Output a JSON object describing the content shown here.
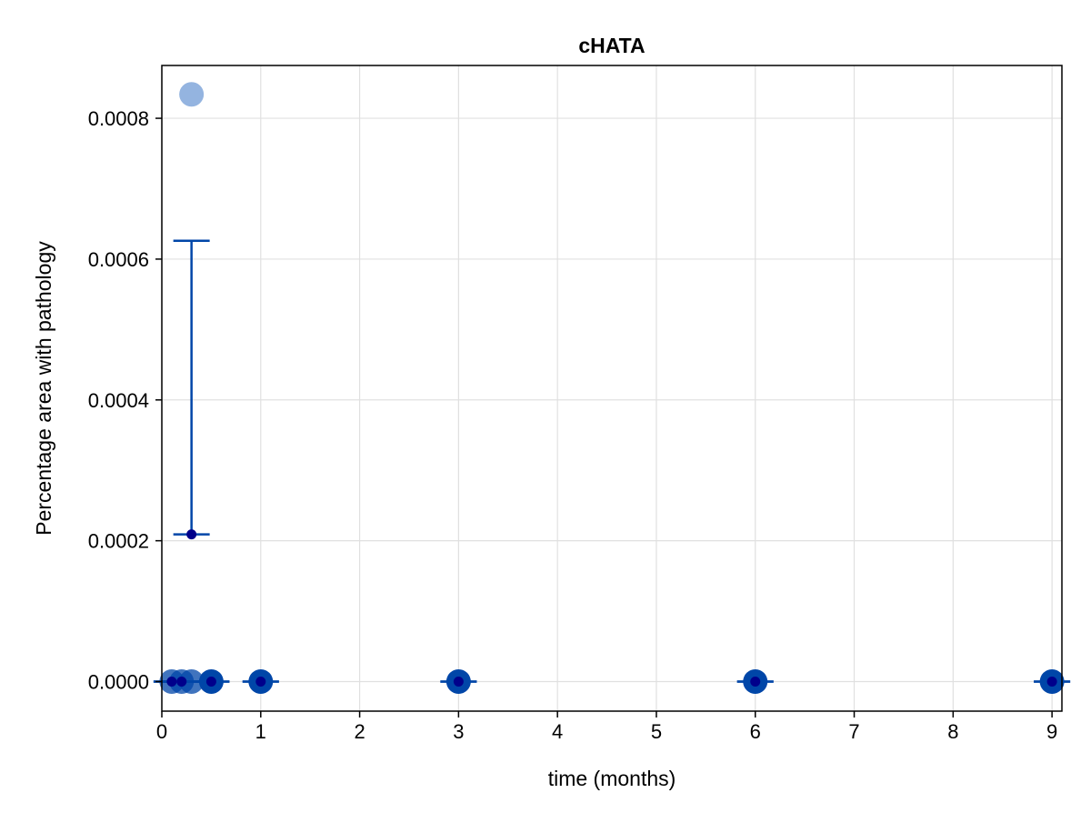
{
  "chart_data": {
    "type": "scatter",
    "title": "cHATA",
    "xlabel": "time (months)",
    "ylabel": "Percentage area with pathology",
    "xlim": [
      0,
      9.1
    ],
    "ylim": [
      -4.2e-05,
      0.000875
    ],
    "xticks": [
      0,
      1,
      2,
      3,
      4,
      5,
      6,
      7,
      8,
      9
    ],
    "xtick_labels": [
      "0",
      "1",
      "2",
      "3",
      "4",
      "5",
      "6",
      "7",
      "8",
      "9"
    ],
    "yticks": [
      0,
      0.0002,
      0.0004,
      0.0006,
      0.0008
    ],
    "ytick_labels": [
      "0.0000",
      "0.0002",
      "0.0004",
      "0.0006",
      "0.0008"
    ],
    "grid": true,
    "legend": "none",
    "colors": {
      "individual": "#0046A8",
      "individual_light": "#94B4E0",
      "mean": "#00008B",
      "error_bar": "#0046A8",
      "grid": "#E0E0E0"
    },
    "individual_points": [
      {
        "x": 0.1,
        "y": 0.0,
        "alpha": 0.75
      },
      {
        "x": 0.2,
        "y": 0.0,
        "alpha": 0.75
      },
      {
        "x": 0.3,
        "y": 0.0,
        "alpha": 0.75
      },
      {
        "x": 0.3,
        "y": 0.000834,
        "alpha": 0.4
      },
      {
        "x": 0.5,
        "y": 0.0,
        "alpha": 1.0
      },
      {
        "x": 1.0,
        "y": 0.0,
        "alpha": 1.0
      },
      {
        "x": 3.0,
        "y": 0.0,
        "alpha": 1.0
      },
      {
        "x": 6.0,
        "y": 0.0,
        "alpha": 1.0
      },
      {
        "x": 9.0,
        "y": 0.0,
        "alpha": 1.0
      }
    ],
    "mean_points": [
      {
        "x": 0.1,
        "y": 0.0,
        "lower": 0.0,
        "upper": 0.0
      },
      {
        "x": 0.2,
        "y": 0.0,
        "lower": 0.0,
        "upper": 0.0
      },
      {
        "x": 0.3,
        "y": 0.000209,
        "lower": 0.000209,
        "upper": 0.000626
      },
      {
        "x": 0.5,
        "y": 0.0,
        "lower": 0.0,
        "upper": 0.0
      },
      {
        "x": 1.0,
        "y": 0.0,
        "lower": 0.0,
        "upper": 0.0
      },
      {
        "x": 3.0,
        "y": 0.0,
        "lower": 0.0,
        "upper": 0.0
      },
      {
        "x": 6.0,
        "y": 0.0,
        "lower": 0.0,
        "upper": 0.0
      },
      {
        "x": 9.0,
        "y": 0.0,
        "lower": 0.0,
        "upper": 0.0
      }
    ]
  }
}
